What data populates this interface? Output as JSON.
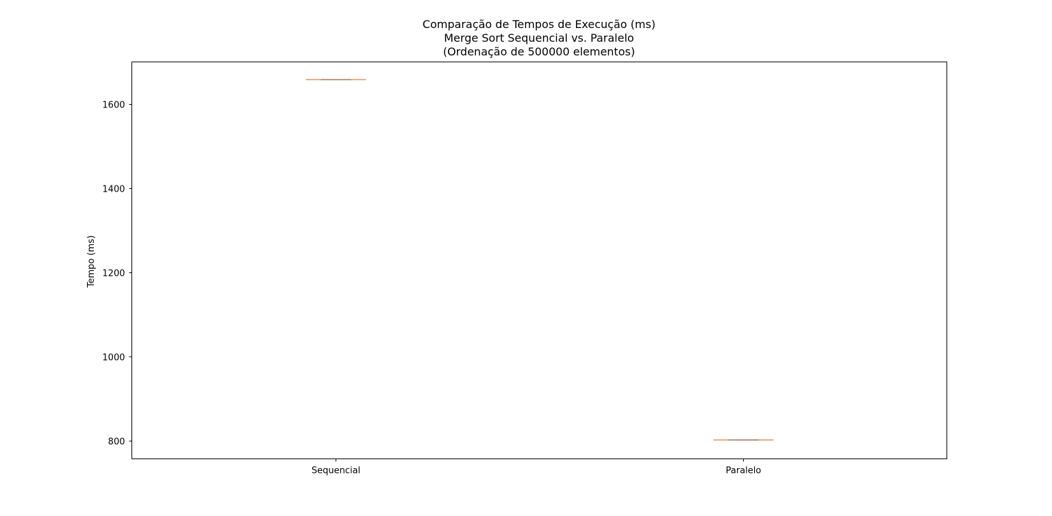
{
  "chart_data": {
    "type": "boxplot",
    "title_lines": [
      "Comparação de Tempos de Execução (ms)",
      "Merge Sort Sequencial vs. Paralelo",
      "(Ordenação de 500000 elementos)"
    ],
    "xlabel": "",
    "ylabel": "Tempo (ms)",
    "categories": [
      "Sequencial",
      "Paralelo"
    ],
    "values": [
      1658,
      802
    ],
    "ylim": [
      757,
      1700
    ],
    "yticks": [
      800,
      1000,
      1200,
      1400,
      1600
    ],
    "grid": false,
    "colors": {
      "median": "#dd8452",
      "box": "#7f7f7f",
      "axes": "#000000"
    }
  }
}
